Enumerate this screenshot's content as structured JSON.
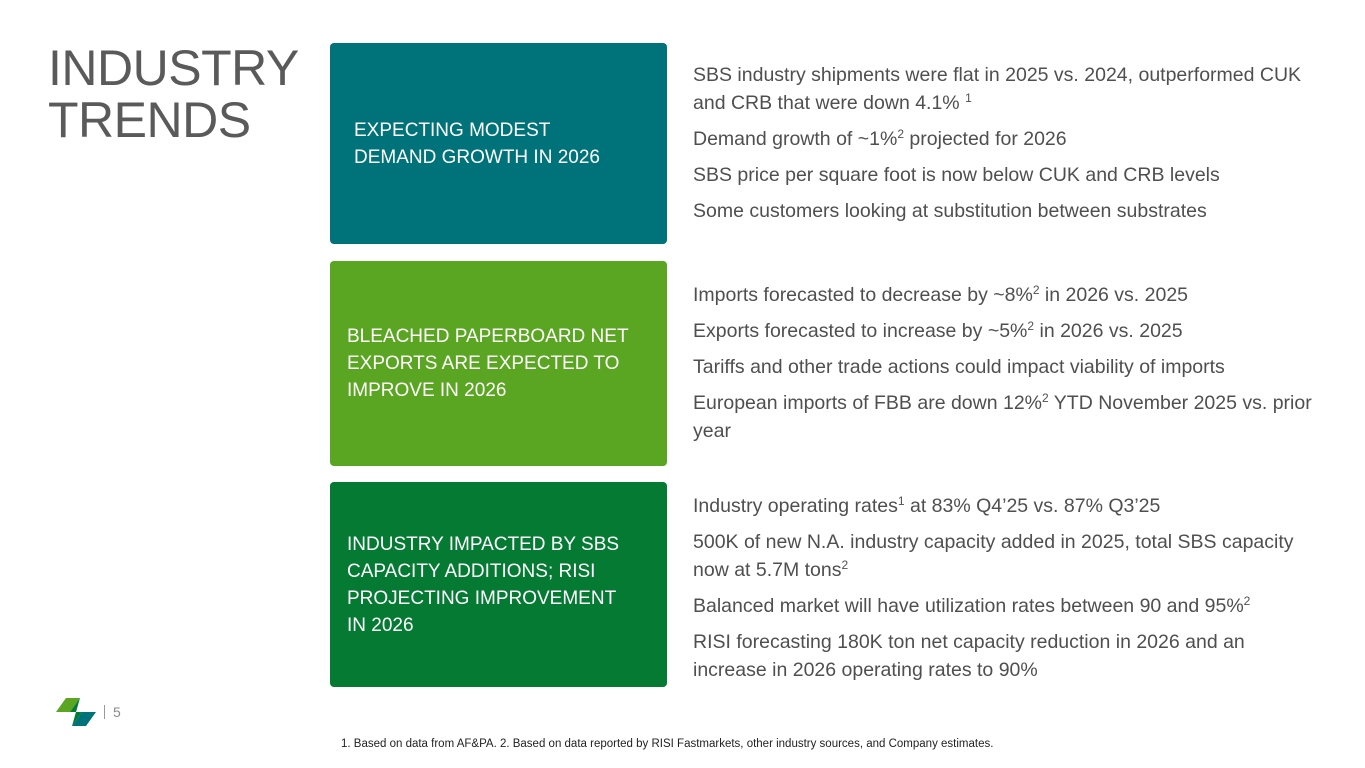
{
  "title": {
    "line1": "INDUSTRY",
    "line2": "TRENDS"
  },
  "colors": {
    "teal": "#00737a",
    "lime": "#5aa521",
    "green": "#047a33"
  },
  "sections": [
    {
      "heading_lines": [
        "EXPECTING MODEST",
        "DEMAND GROWTH IN 2026"
      ],
      "bullets": [
        [
          "SBS industry shipments were flat in 2025 vs. 2024, outperformed CUK and CRB that were down 4.1% ",
          "1",
          ""
        ],
        [
          "Demand growth of ~1%",
          "2",
          " projected for 2026"
        ],
        [
          "SBS price per square foot is now below CUK and CRB levels",
          "",
          ""
        ],
        [
          "Some customers looking at substitution between substrates",
          "",
          ""
        ]
      ]
    },
    {
      "heading_lines": [
        "BLEACHED PAPERBOARD NET",
        "EXPORTS ARE EXPECTED TO",
        "IMPROVE IN 2026"
      ],
      "bullets": [
        [
          "Imports forecasted to decrease by ~8%",
          "2",
          " in 2026 vs. 2025"
        ],
        [
          "Exports forecasted to increase by ~5%",
          "2",
          " in 2026 vs. 2025"
        ],
        [
          "Tariffs and other trade actions could impact viability of imports",
          "",
          ""
        ],
        [
          "European imports of FBB are down 12%",
          "2",
          " YTD November 2025 vs. prior year"
        ]
      ]
    },
    {
      "heading_lines": [
        "INDUSTRY IMPACTED BY SBS",
        "CAPACITY ADDITIONS; RISI",
        "PROJECTING IMPROVEMENT",
        "IN 2026"
      ],
      "bullets": [
        [
          "Industry operating rates",
          "1",
          " at 83% Q4’25 vs. 87% Q3’25"
        ],
        [
          "500K of new N.A. industry capacity added in 2025, total SBS capacity now at 5.7M tons",
          "2",
          ""
        ],
        [
          "Balanced market will have utilization rates between 90 and 95%",
          "2",
          ""
        ],
        [
          "RISI forecasting 180K ton net capacity reduction in 2026 and an increase in 2026 operating rates to 90%",
          "",
          ""
        ]
      ]
    }
  ],
  "page_number": "5",
  "footnote": "1. Based on data from AF&PA. 2. Based on data reported by RISI Fastmarkets, other industry sources, and Company estimates."
}
